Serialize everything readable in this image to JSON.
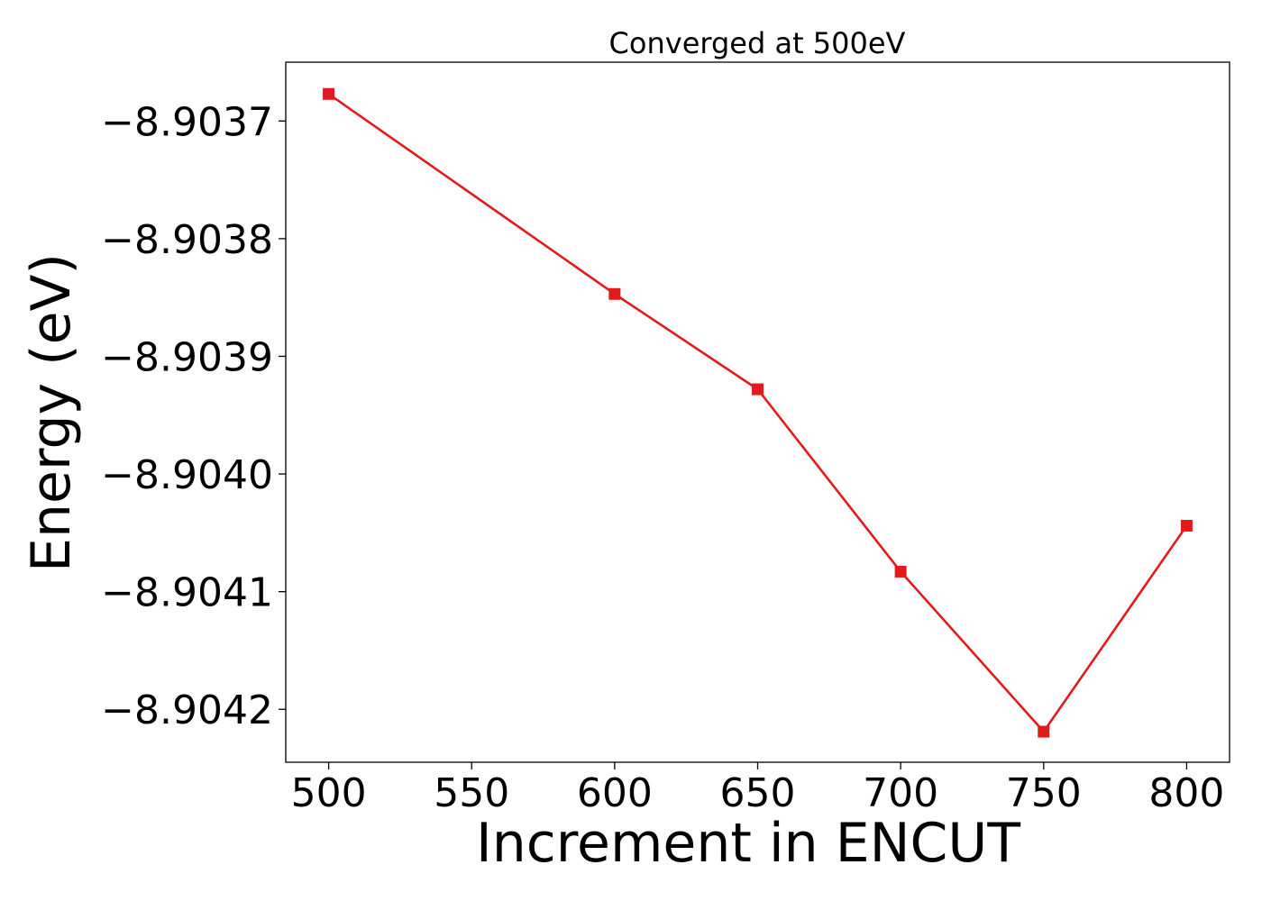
{
  "chart_data": {
    "type": "line",
    "title": "Converged at 500eV",
    "xlabel": "Increment in ENCUT",
    "ylabel": "Energy (eV)",
    "x": [
      500,
      600,
      650,
      700,
      750,
      800
    ],
    "series": [
      {
        "values": [
          -8.903677,
          -8.903847,
          -8.903928,
          -8.904083,
          -8.904219,
          -8.904044
        ],
        "color": "#e31a1c",
        "marker": "square"
      }
    ],
    "xticks": [
      500,
      550,
      600,
      650,
      700,
      750,
      800
    ],
    "xtick_labels": [
      "500",
      "550",
      "600",
      "650",
      "700",
      "750",
      "800"
    ],
    "yticks": [
      -8.9037,
      -8.9038,
      -8.9039,
      -8.904,
      -8.9041,
      -8.9042
    ],
    "ytick_labels": [
      "−8.9037",
      "−8.9038",
      "−8.9039",
      "−8.9040",
      "−8.9041",
      "−8.9042"
    ],
    "xlim": [
      485,
      815
    ],
    "ylim": [
      -8.904245,
      -8.90365
    ],
    "grid": false,
    "legend": "none"
  }
}
